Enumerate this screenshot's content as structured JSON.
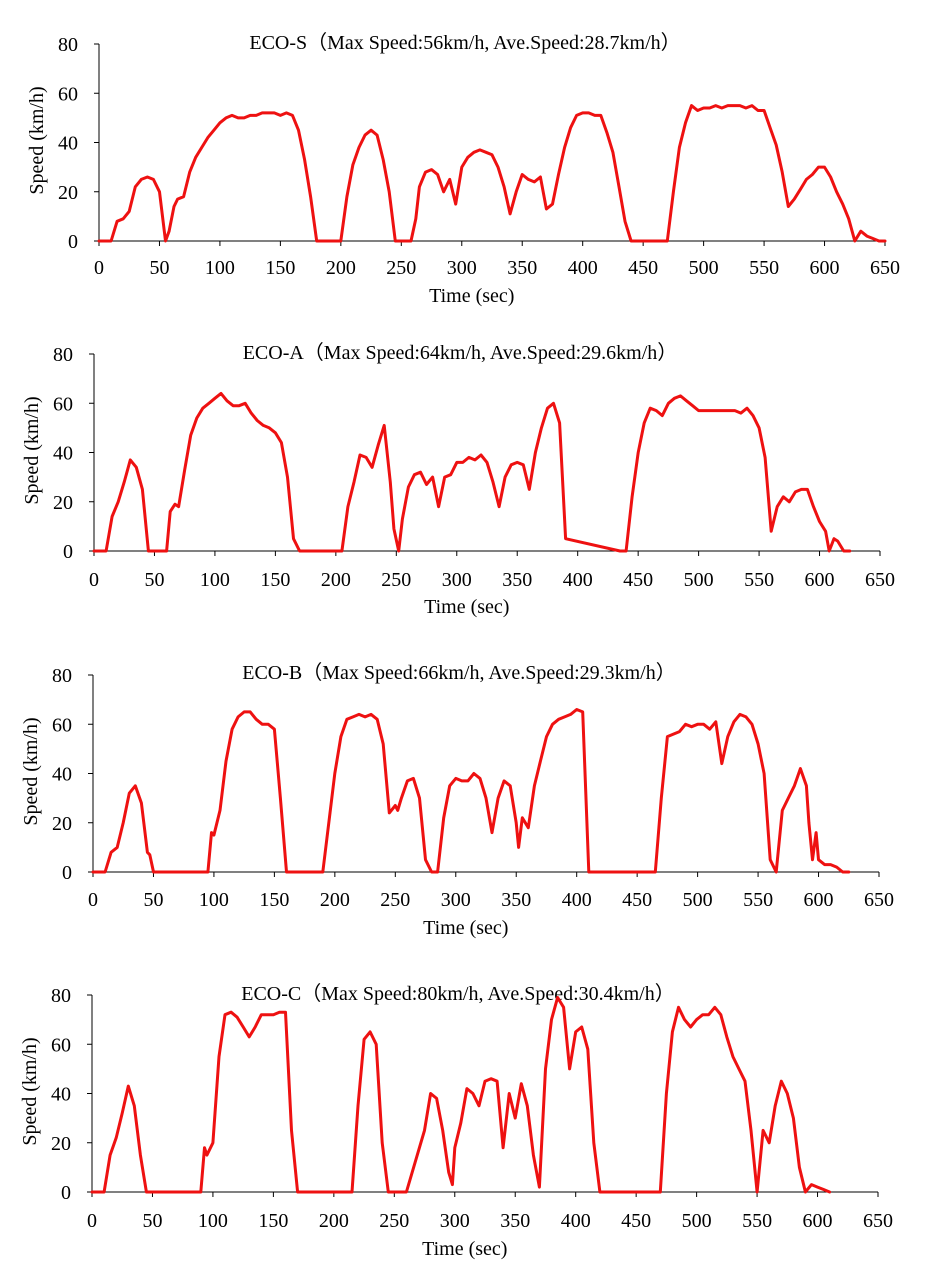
{
  "chart_data": [
    {
      "type": "line",
      "title": "ECO-S（Max Speed:56km/h, Ave.Speed:28.7km/h）",
      "xlabel": "Time (sec)",
      "ylabel": "Speed (km/h)",
      "xlim": [
        0,
        650
      ],
      "ylim": [
        0,
        80
      ],
      "xticks": [
        0,
        50,
        100,
        150,
        200,
        250,
        300,
        350,
        400,
        450,
        500,
        550,
        600,
        650
      ],
      "yticks": [
        0,
        20,
        40,
        60,
        80
      ],
      "grid": false,
      "series": [
        {
          "name": "ECO-S",
          "color": "#ee1111",
          "x": [
            0,
            10,
            15,
            20,
            25,
            30,
            35,
            40,
            45,
            50,
            55,
            58,
            62,
            65,
            70,
            75,
            80,
            85,
            90,
            95,
            100,
            105,
            110,
            115,
            120,
            125,
            130,
            135,
            140,
            145,
            150,
            155,
            160,
            165,
            170,
            175,
            180,
            200,
            205,
            210,
            215,
            220,
            225,
            230,
            235,
            240,
            245,
            250,
            255,
            258,
            262,
            265,
            270,
            275,
            280,
            285,
            290,
            295,
            300,
            305,
            310,
            315,
            320,
            325,
            330,
            335,
            340,
            345,
            350,
            355,
            360,
            365,
            370,
            375,
            380,
            385,
            390,
            395,
            400,
            405,
            410,
            415,
            420,
            425,
            430,
            435,
            440,
            470,
            475,
            480,
            485,
            490,
            495,
            500,
            505,
            510,
            515,
            520,
            525,
            530,
            535,
            540,
            545,
            550,
            555,
            560,
            565,
            570,
            575,
            580,
            585,
            590,
            595,
            600,
            605,
            610,
            615,
            620,
            625,
            630,
            635,
            640,
            645,
            650
          ],
          "values": [
            0,
            0,
            8,
            9,
            12,
            22,
            25,
            26,
            25,
            20,
            0,
            4,
            14,
            17,
            18,
            28,
            34,
            38,
            42,
            45,
            48,
            50,
            51,
            50,
            50,
            51,
            51,
            52,
            52,
            52,
            51,
            52,
            51,
            45,
            33,
            18,
            0,
            0,
            18,
            31,
            38,
            43,
            45,
            43,
            33,
            20,
            0,
            0,
            0,
            0,
            9,
            22,
            28,
            29,
            27,
            20,
            25,
            15,
            30,
            34,
            36,
            37,
            36,
            35,
            30,
            22,
            11,
            20,
            27,
            25,
            24,
            26,
            13,
            15,
            27,
            38,
            46,
            51,
            52,
            52,
            51,
            51,
            44,
            36,
            22,
            8,
            0,
            0,
            20,
            38,
            48,
            55,
            53,
            54,
            54,
            55,
            54,
            55,
            55,
            55,
            54,
            55,
            53,
            53,
            46,
            39,
            28,
            14,
            17,
            21,
            25,
            27,
            30,
            30,
            26,
            20,
            15,
            9,
            0,
            4,
            2,
            1,
            0,
            0
          ]
        }
      ]
    },
    {
      "type": "line",
      "title": "ECO-A（Max Speed:64km/h, Ave.Speed:29.6km/h）",
      "xlabel": "Time (sec)",
      "ylabel": "Speed (km/h)",
      "xlim": [
        0,
        650
      ],
      "ylim": [
        0,
        80
      ],
      "xticks": [
        0,
        50,
        100,
        150,
        200,
        250,
        300,
        350,
        400,
        450,
        500,
        550,
        600,
        650
      ],
      "yticks": [
        0,
        20,
        40,
        60,
        80
      ],
      "grid": false,
      "series": [
        {
          "name": "ECO-A",
          "color": "#ee1111",
          "x": [
            0,
            10,
            15,
            20,
            25,
            30,
            35,
            40,
            45,
            50,
            60,
            63,
            67,
            70,
            75,
            80,
            85,
            90,
            95,
            100,
            105,
            110,
            115,
            120,
            125,
            130,
            135,
            140,
            145,
            150,
            155,
            160,
            165,
            170,
            205,
            210,
            215,
            220,
            225,
            230,
            235,
            240,
            245,
            248,
            252,
            255,
            260,
            265,
            270,
            275,
            280,
            285,
            290,
            295,
            300,
            305,
            310,
            315,
            320,
            325,
            330,
            335,
            340,
            345,
            350,
            355,
            360,
            365,
            370,
            375,
            380,
            385,
            390,
            435,
            440,
            445,
            450,
            455,
            460,
            465,
            470,
            475,
            480,
            485,
            490,
            495,
            500,
            505,
            510,
            515,
            520,
            525,
            530,
            535,
            540,
            545,
            550,
            555,
            560,
            565,
            570,
            575,
            580,
            585,
            590,
            595,
            600,
            605,
            608,
            612,
            615,
            620,
            625
          ],
          "values": [
            0,
            0,
            14,
            20,
            28,
            37,
            34,
            25,
            0,
            0,
            0,
            16,
            19,
            18,
            33,
            47,
            54,
            58,
            60,
            62,
            64,
            61,
            59,
            59,
            60,
            56,
            53,
            51,
            50,
            48,
            44,
            30,
            5,
            0,
            0,
            18,
            28,
            39,
            38,
            34,
            43,
            51,
            28,
            9,
            0,
            13,
            26,
            31,
            32,
            27,
            30,
            18,
            30,
            31,
            36,
            36,
            38,
            37,
            39,
            36,
            28,
            18,
            30,
            35,
            36,
            35,
            25,
            40,
            50,
            58,
            60,
            52,
            5,
            0,
            0,
            22,
            40,
            52,
            58,
            57,
            55,
            60,
            62,
            63,
            61,
            59,
            57,
            57,
            57,
            57,
            57,
            57,
            57,
            56,
            58,
            55,
            50,
            38,
            8,
            18,
            22,
            20,
            24,
            25,
            25,
            18,
            12,
            8,
            0,
            5,
            4,
            0,
            0
          ]
        }
      ]
    },
    {
      "type": "line",
      "title": "ECO-B（Max Speed:66km/h, Ave.Speed:29.3km/h）",
      "xlabel": "Time (sec)",
      "ylabel": "Speed (km/h)",
      "xlim": [
        0,
        650
      ],
      "ylim": [
        0,
        80
      ],
      "xticks": [
        0,
        50,
        100,
        150,
        200,
        250,
        300,
        350,
        400,
        450,
        500,
        550,
        600,
        650
      ],
      "yticks": [
        0,
        20,
        40,
        60,
        80
      ],
      "grid": false,
      "series": [
        {
          "name": "ECO-B",
          "color": "#ee1111",
          "x": [
            0,
            10,
            15,
            20,
            25,
            30,
            35,
            40,
            45,
            47,
            50,
            52,
            95,
            98,
            100,
            105,
            110,
            115,
            120,
            125,
            130,
            135,
            140,
            145,
            150,
            155,
            160,
            165,
            190,
            195,
            200,
            205,
            210,
            215,
            220,
            225,
            230,
            235,
            240,
            245,
            250,
            252,
            255,
            260,
            265,
            270,
            275,
            280,
            285,
            290,
            295,
            300,
            305,
            310,
            315,
            320,
            325,
            330,
            335,
            340,
            345,
            350,
            352,
            355,
            360,
            365,
            370,
            375,
            380,
            385,
            390,
            395,
            400,
            405,
            410,
            465,
            470,
            475,
            480,
            485,
            490,
            495,
            500,
            505,
            510,
            515,
            520,
            525,
            530,
            535,
            540,
            545,
            550,
            555,
            560,
            565,
            570,
            575,
            580,
            585,
            590,
            592,
            595,
            598,
            600,
            605,
            610,
            615,
            620,
            625
          ],
          "values": [
            0,
            0,
            8,
            10,
            20,
            32,
            35,
            28,
            8,
            7,
            0,
            0,
            0,
            16,
            15,
            25,
            45,
            58,
            63,
            65,
            65,
            62,
            60,
            60,
            58,
            30,
            0,
            0,
            0,
            20,
            40,
            55,
            62,
            63,
            64,
            63,
            64,
            62,
            52,
            24,
            27,
            25,
            30,
            37,
            38,
            30,
            5,
            0,
            0,
            22,
            35,
            38,
            37,
            37,
            40,
            38,
            30,
            16,
            30,
            37,
            35,
            20,
            10,
            22,
            18,
            35,
            45,
            55,
            60,
            62,
            63,
            64,
            66,
            65,
            0,
            0,
            30,
            55,
            56,
            57,
            60,
            59,
            60,
            60,
            58,
            61,
            44,
            55,
            61,
            64,
            63,
            60,
            52,
            40,
            5,
            0,
            25,
            30,
            35,
            42,
            35,
            20,
            5,
            16,
            5,
            3,
            3,
            2,
            0,
            0
          ]
        }
      ]
    },
    {
      "type": "line",
      "title": "ECO-C（Max Speed:80km/h, Ave.Speed:30.4km/h）",
      "xlabel": "Time (sec)",
      "ylabel": "Speed (km/h)",
      "xlim": [
        0,
        650
      ],
      "ylim": [
        0,
        80
      ],
      "xticks": [
        0,
        50,
        100,
        150,
        200,
        250,
        300,
        350,
        400,
        450,
        500,
        550,
        600,
        650
      ],
      "yticks": [
        0,
        20,
        40,
        60,
        80
      ],
      "grid": false,
      "series": [
        {
          "name": "ECO-C",
          "color": "#ee1111",
          "x": [
            0,
            10,
            15,
            20,
            25,
            30,
            35,
            40,
            45,
            90,
            93,
            95,
            100,
            105,
            110,
            115,
            120,
            125,
            130,
            135,
            140,
            145,
            150,
            155,
            160,
            165,
            170,
            175,
            215,
            220,
            225,
            230,
            235,
            240,
            245,
            250,
            260,
            275,
            280,
            285,
            290,
            295,
            298,
            300,
            305,
            310,
            315,
            320,
            325,
            330,
            335,
            340,
            345,
            350,
            355,
            360,
            365,
            370,
            375,
            380,
            385,
            390,
            395,
            400,
            405,
            410,
            415,
            420,
            470,
            475,
            480,
            485,
            490,
            495,
            500,
            505,
            510,
            515,
            520,
            525,
            530,
            535,
            540,
            545,
            550,
            555,
            560,
            565,
            570,
            575,
            580,
            585,
            590,
            595,
            600,
            605,
            610
          ],
          "values": [
            0,
            0,
            15,
            22,
            32,
            43,
            35,
            15,
            0,
            0,
            18,
            15,
            20,
            55,
            72,
            73,
            71,
            67,
            63,
            67,
            72,
            72,
            72,
            73,
            73,
            25,
            0,
            0,
            0,
            35,
            62,
            65,
            60,
            20,
            0,
            0,
            0,
            25,
            40,
            38,
            25,
            8,
            3,
            18,
            28,
            42,
            40,
            35,
            45,
            46,
            45,
            18,
            40,
            30,
            44,
            35,
            15,
            2,
            50,
            70,
            79,
            75,
            50,
            65,
            67,
            58,
            20,
            0,
            0,
            40,
            65,
            75,
            70,
            67,
            70,
            72,
            72,
            75,
            72,
            63,
            55,
            50,
            45,
            25,
            0,
            25,
            20,
            35,
            45,
            40,
            30,
            10,
            0,
            3,
            2,
            1,
            0
          ]
        }
      ]
    }
  ]
}
